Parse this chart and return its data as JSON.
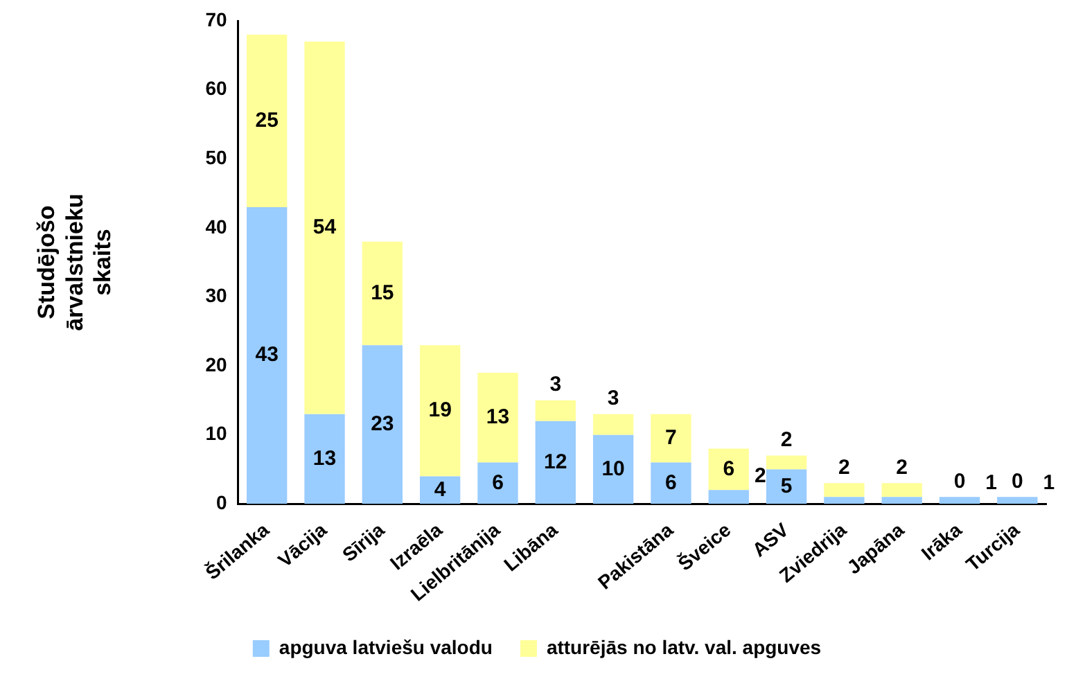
{
  "chart_data": {
    "type": "bar",
    "stacked": true,
    "ylabel": "Studējošo ārvalstnieku skaits",
    "categories": [
      "Šrilanka",
      "Vācija",
      "Sīrija",
      "Izraēla",
      "Lielbritānija",
      "Libāna",
      null,
      "Pakistāna",
      "Šveice",
      "ASV",
      "Zviedrija",
      "Japāna",
      "Irāka",
      "Turcija"
    ],
    "series": [
      {
        "name": "apguva latviešu valodu",
        "color": "#99ccff",
        "values": [
          43,
          13,
          23,
          4,
          6,
          12,
          10,
          6,
          2,
          5,
          1,
          1,
          1,
          1
        ],
        "value_labels": [
          "43",
          "13",
          "23",
          "4",
          "6",
          "12",
          "10",
          "6",
          "2",
          "5",
          null,
          null,
          "1",
          "1"
        ]
      },
      {
        "name": "atturējās no latv. val. apguves",
        "color": "#ffff99",
        "values": [
          25,
          54,
          15,
          19,
          13,
          3,
          3,
          7,
          6,
          2,
          2,
          2,
          0,
          0
        ],
        "value_labels": [
          "25",
          "54",
          "15",
          "19",
          "13",
          "3",
          "3",
          "7",
          "6",
          "2",
          "2",
          "2",
          "0",
          "0"
        ]
      }
    ],
    "ylim": [
      0,
      70
    ],
    "yticks": [
      0,
      10,
      20,
      30,
      40,
      50,
      60,
      70
    ],
    "grid": false,
    "legend": "bottom"
  }
}
